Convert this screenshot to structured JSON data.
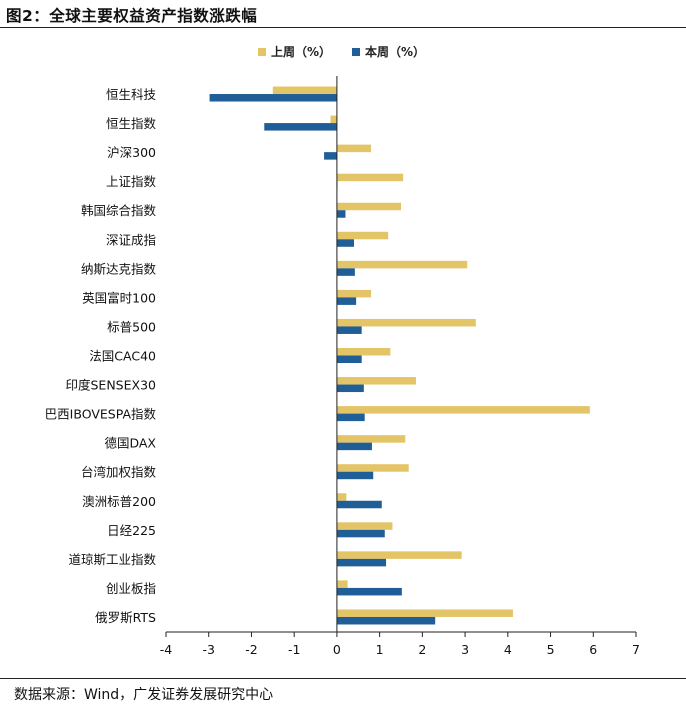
{
  "title": "图2：全球主要权益资产指数涨跌幅",
  "source": "数据来源：Wind，广发证券发展研究中心",
  "chart_data": {
    "type": "bar",
    "orientation": "horizontal",
    "title": "图2：全球主要权益资产指数涨跌幅",
    "xlabel": "",
    "ylabel": "",
    "xlim": [
      -4,
      7
    ],
    "xticks": [
      -4,
      -3,
      -2,
      -1,
      0,
      1,
      2,
      3,
      4,
      5,
      6,
      7
    ],
    "legend_position": "top-center",
    "categories": [
      "恒生科技",
      "恒生指数",
      "沪深300",
      "上证指数",
      "韩国综合指数",
      "深证成指",
      "纳斯达克指数",
      "英国富时100",
      "标普500",
      "法国CAC40",
      "印度SENSEX30",
      "巴西IBOVESPA指数",
      "德国DAX",
      "台湾加权指数",
      "澳洲标普200",
      "日经225",
      "道琼斯工业指数",
      "创业板指",
      "俄罗斯RTS"
    ],
    "series": [
      {
        "name": "上周（%）",
        "color": "#E3C467",
        "values": [
          -1.5,
          -0.15,
          0.8,
          1.55,
          1.5,
          1.2,
          3.05,
          0.8,
          3.25,
          1.25,
          1.85,
          5.92,
          1.6,
          1.68,
          0.22,
          1.3,
          2.92,
          0.25,
          4.12
        ]
      },
      {
        "name": "本周（%）",
        "color": "#1F5E96",
        "values": [
          -2.98,
          -1.7,
          -0.3,
          0.0,
          0.2,
          0.4,
          0.42,
          0.45,
          0.58,
          0.58,
          0.63,
          0.65,
          0.82,
          0.85,
          1.05,
          1.12,
          1.15,
          1.52,
          2.3
        ]
      }
    ]
  }
}
